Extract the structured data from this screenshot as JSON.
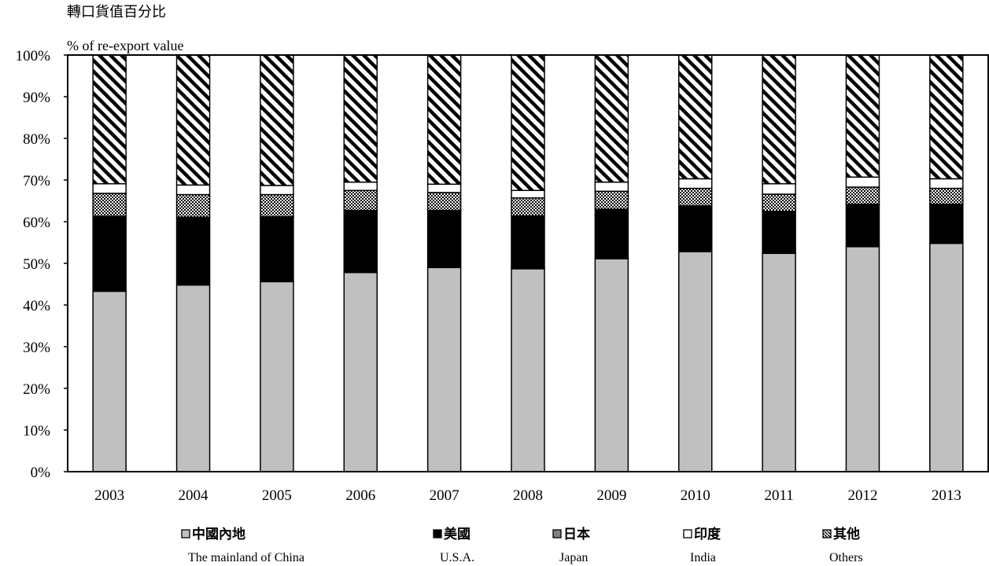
{
  "chart_data": {
    "type": "bar",
    "stacked": true,
    "ylabel_zh": "轉口貨值百分比",
    "ylabel_en": "% of re-export value",
    "ylim": [
      0,
      100
    ],
    "yticks": [
      "0%",
      "10%",
      "20%",
      "30%",
      "40%",
      "50%",
      "60%",
      "70%",
      "80%",
      "90%",
      "100%"
    ],
    "categories": [
      "2003",
      "2004",
      "2005",
      "2006",
      "2007",
      "2008",
      "2009",
      "2010",
      "2011",
      "2012",
      "2013"
    ],
    "series": [
      {
        "name_zh": "中國內地",
        "name_en": "The mainland of China",
        "pattern": "grey",
        "color": "#c0c0c0",
        "values": [
          43.3,
          44.8,
          45.6,
          47.8,
          49.0,
          48.7,
          51.1,
          52.8,
          52.4,
          54.0,
          54.8
        ]
      },
      {
        "name_zh": "美國",
        "name_en": "U.S.A.",
        "pattern": "solid-black",
        "color": "#000000",
        "values": [
          18.0,
          16.3,
          15.6,
          14.9,
          13.7,
          12.7,
          11.9,
          11.0,
          10.1,
          10.2,
          9.4
        ]
      },
      {
        "name_zh": "日本",
        "name_en": "Japan",
        "pattern": "checker",
        "values": [
          5.5,
          5.4,
          5.3,
          4.8,
          4.3,
          4.3,
          4.3,
          4.2,
          4.1,
          4.1,
          3.8
        ]
      },
      {
        "name_zh": "印度",
        "name_en": "India",
        "pattern": "white",
        "color": "#ffffff",
        "values": [
          2.3,
          2.3,
          2.2,
          2.0,
          2.0,
          1.8,
          2.2,
          2.3,
          2.5,
          2.4,
          2.3
        ]
      },
      {
        "name_zh": "其他",
        "name_en": "Others",
        "pattern": "diagonal",
        "values": [
          30.9,
          31.2,
          31.3,
          30.5,
          31.0,
          32.5,
          30.5,
          29.7,
          30.9,
          29.3,
          29.7
        ]
      }
    ],
    "legend_position": "bottom",
    "grid": false
  }
}
